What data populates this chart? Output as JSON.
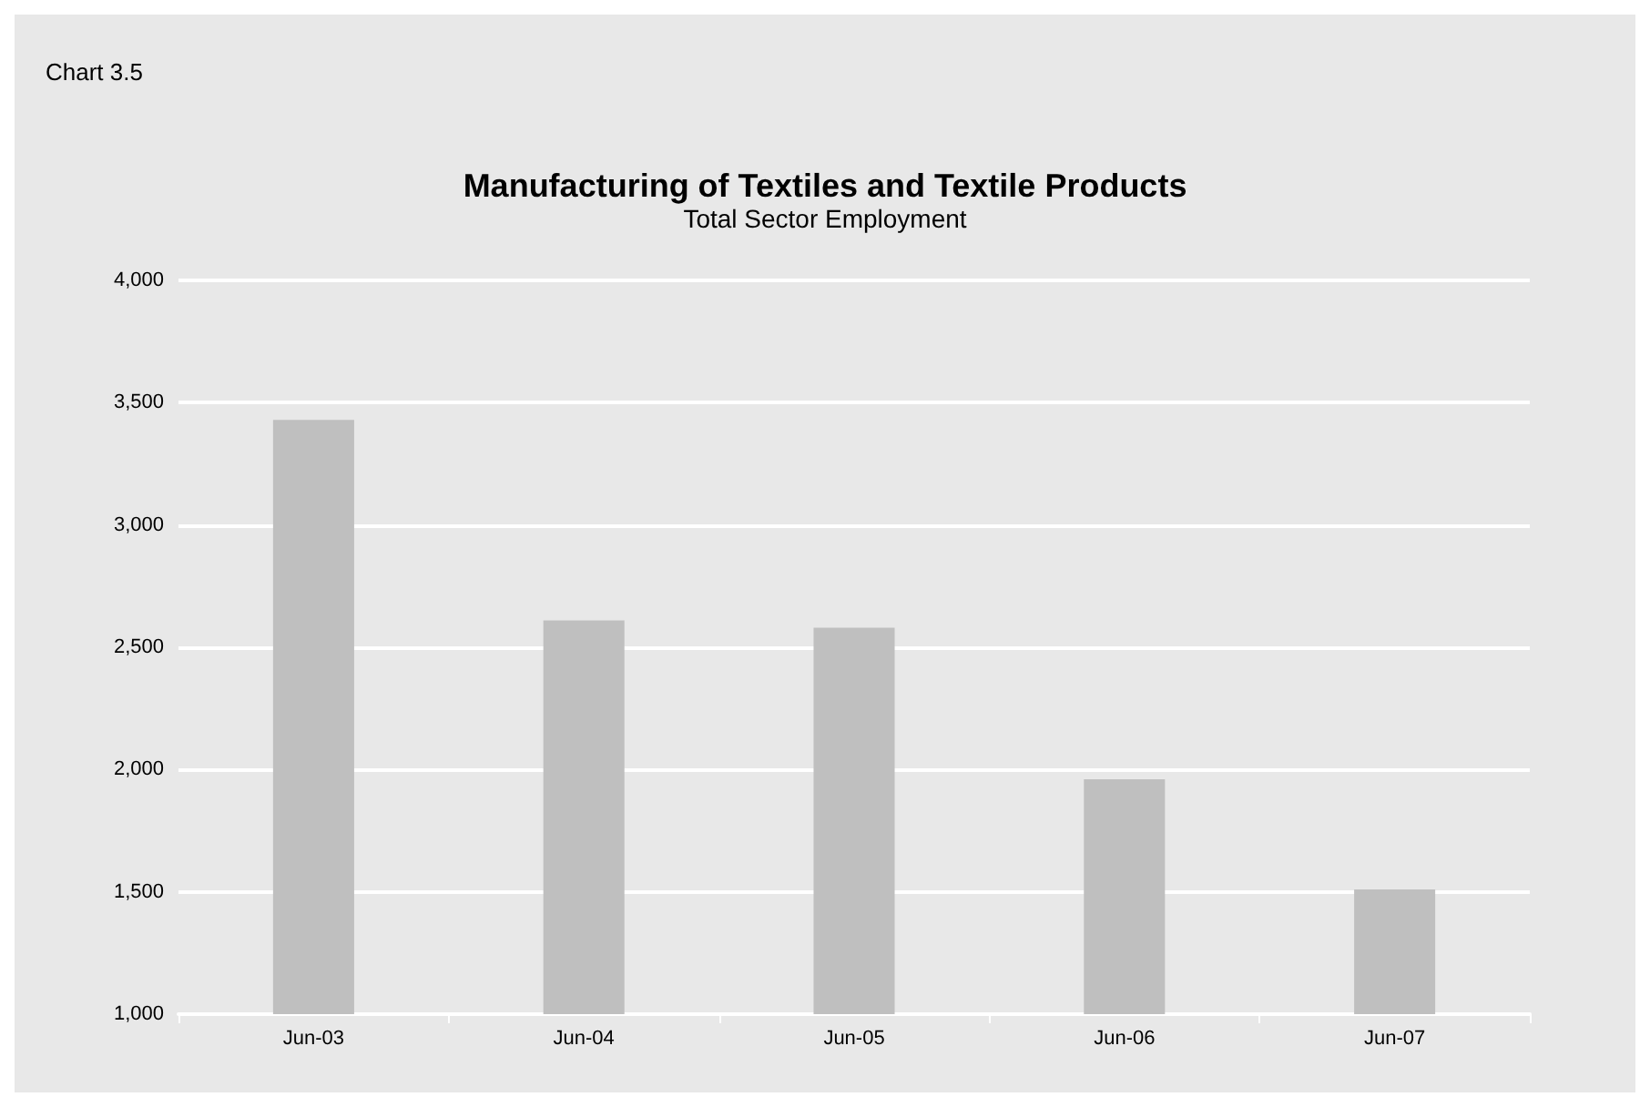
{
  "chart_data": {
    "type": "bar",
    "title": "Manufacturing of Textiles and Textile Products",
    "subtitle": "Total Sector Employment",
    "annotations": [
      "Chart 3.5"
    ],
    "categories": [
      "Jun-03",
      "Jun-04",
      "Jun-05",
      "Jun-06",
      "Jun-07"
    ],
    "values": [
      3430,
      2610,
      2580,
      1960,
      1510
    ],
    "color": "#bfbfbf",
    "ylim": [
      1000,
      4000
    ],
    "yticks": [
      {
        "value": 1000,
        "label": "1,000"
      },
      {
        "value": 1500,
        "label": "1,500"
      },
      {
        "value": 2000,
        "label": "2,000"
      },
      {
        "value": 2500,
        "label": "2,500"
      },
      {
        "value": 3000,
        "label": "3,000"
      },
      {
        "value": 3500,
        "label": "3,500"
      },
      {
        "value": 4000,
        "label": "4,000"
      }
    ],
    "grid": "y"
  }
}
